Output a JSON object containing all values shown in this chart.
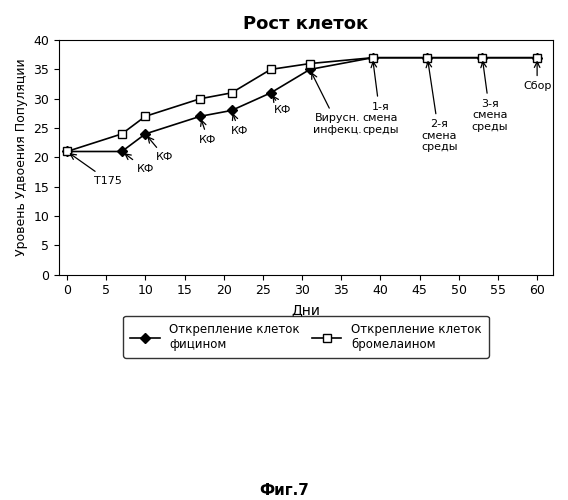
{
  "title": "Рост клеток",
  "xlabel": "Дни",
  "ylabel": "Уровень Удвоения Популяции",
  "caption": "Фиг.7",
  "xlim": [
    -1,
    62
  ],
  "ylim": [
    0,
    40
  ],
  "xticks": [
    0,
    5,
    10,
    15,
    20,
    25,
    30,
    35,
    40,
    45,
    50,
    55,
    60
  ],
  "yticks": [
    0,
    5,
    10,
    15,
    20,
    25,
    30,
    35,
    40
  ],
  "line1_x": [
    0,
    7,
    10,
    17,
    21,
    26,
    31,
    39,
    46,
    53,
    60
  ],
  "line1_y": [
    21,
    21,
    24,
    27,
    28,
    31,
    35,
    37,
    37,
    37,
    37
  ],
  "line1_label": "Открепление клеток\nфицином",
  "line2_x": [
    0,
    7,
    10,
    17,
    21,
    26,
    31,
    39,
    46,
    53,
    60
  ],
  "line2_y": [
    21,
    24,
    27,
    30,
    31,
    35,
    36,
    37,
    37,
    37,
    37
  ],
  "line2_label": "Открепление клеток\nбромелаином",
  "background_color": "#ffffff",
  "figsize": [
    5.68,
    5.0
  ],
  "dpi": 100
}
